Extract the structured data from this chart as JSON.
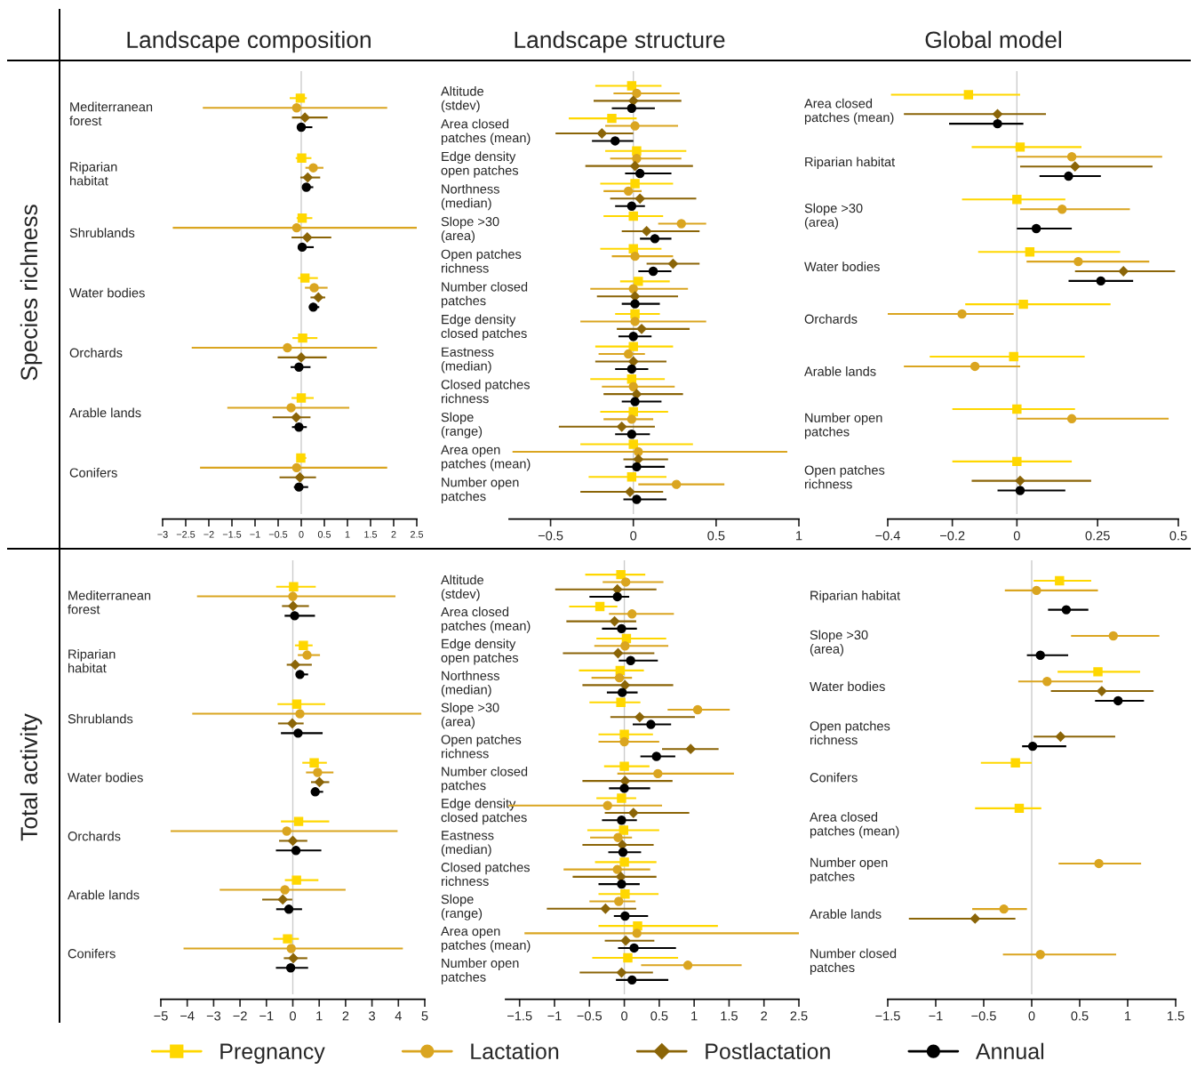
{
  "chart_data": [
    {
      "type": "scatter",
      "orientation": "horizontal",
      "title": "Landscape composition",
      "ylabel": "Species richness",
      "legend": "bottom",
      "categories": [
        "Mediterranean\nforest",
        "Riparian\nhabitat",
        "Shrublands",
        "Water bodies",
        "Orchards",
        "Arable lands",
        "Conifers"
      ],
      "series": [
        {
          "name": "Pregnancy",
          "color": "#ffd700",
          "marker": "square",
          "values": [
            -0.02,
            0.01,
            0.02,
            0.08,
            0.03,
            0.0,
            -0.01
          ],
          "errors": [
            [
              -0.25,
              0.12
            ],
            [
              -0.12,
              0.22
            ],
            [
              -0.1,
              0.24
            ],
            [
              -0.07,
              0.36
            ],
            [
              -0.19,
              0.35
            ],
            [
              -0.21,
              0.27
            ],
            [
              -0.1,
              0.11
            ]
          ]
        },
        {
          "name": "Lactation",
          "color": "#daa520",
          "marker": "circle",
          "values": [
            -0.1,
            0.26,
            -0.1,
            0.28,
            -0.3,
            -0.22,
            -0.1
          ],
          "errors": [
            [
              -2.13,
              1.86
            ],
            [
              0.09,
              0.48
            ],
            [
              -2.78,
              2.5
            ],
            [
              0.08,
              0.57
            ],
            [
              -2.37,
              1.64
            ],
            [
              -1.6,
              1.04
            ],
            [
              -2.19,
              1.86
            ]
          ]
        },
        {
          "name": "Postlactation",
          "color": "#8b6508",
          "marker": "diamond",
          "values": [
            0.08,
            0.14,
            0.13,
            0.37,
            0.0,
            -0.11,
            -0.03
          ],
          "errors": [
            [
              -0.2,
              0.57
            ],
            [
              -0.02,
              0.41
            ],
            [
              -0.21,
              0.65
            ],
            [
              0.2,
              0.52
            ],
            [
              -0.51,
              0.55
            ],
            [
              -0.62,
              0.2
            ],
            [
              -0.47,
              0.32
            ]
          ]
        },
        {
          "name": "Annual",
          "color": "#000000",
          "marker": "circle",
          "values": [
            0.0,
            0.11,
            0.02,
            0.26,
            -0.05,
            -0.05,
            -0.05
          ],
          "errors": [
            [
              -0.02,
              0.24
            ],
            [
              0.03,
              0.26
            ],
            [
              -0.07,
              0.27
            ],
            [
              0.17,
              0.39
            ],
            [
              -0.23,
              0.2
            ],
            [
              -0.2,
              0.12
            ],
            [
              -0.16,
              0.15
            ]
          ]
        }
      ],
      "xlim": [
        -3,
        2.5
      ],
      "xticks": [
        -3,
        -2.5,
        -2,
        -1.5,
        -1,
        -0.5,
        0,
        0.5,
        1,
        1.5,
        2,
        2.5
      ],
      "ref_lines": [
        {
          "axis": "x",
          "value": 0,
          "color": "#cccccc"
        }
      ]
    },
    {
      "type": "scatter",
      "orientation": "horizontal",
      "title": "Landscape structure",
      "categories": [
        "Altitude\n(stdev)",
        "Area closed\npatches (mean)",
        "Edge density\nopen patches",
        "Northness\n(median)",
        "Slope >30\n(area)",
        "Open patches\nrichness",
        "Number closed\npatches",
        "Edge density\nclosed patches",
        "Eastness\n(median)",
        "Closed patches\nrichness",
        "Slope\n(range)",
        "Area open\npatches (mean)",
        "Number open\npatches"
      ],
      "series": [
        {
          "color": "#ffd700",
          "marker": "square",
          "values": [
            -0.01,
            -0.13,
            0.02,
            0.01,
            0.0,
            0.0,
            0.03,
            0.01,
            0.0,
            -0.01,
            0.0,
            0.0,
            -0.01
          ],
          "errors": [
            [
              -0.23,
              0.17
            ],
            [
              -0.39,
              0.02
            ],
            [
              -0.17,
              0.32
            ],
            [
              -0.2,
              0.24
            ],
            [
              -0.18,
              0.18
            ],
            [
              -0.2,
              0.17
            ],
            [
              -0.08,
              0.22
            ],
            [
              -0.11,
              0.16
            ],
            [
              -0.23,
              0.24
            ],
            [
              -0.26,
              0.19
            ],
            [
              -0.2,
              0.21
            ],
            [
              -0.32,
              0.36
            ],
            [
              -0.27,
              0.2
            ]
          ]
        },
        {
          "color": "#daa520",
          "marker": "circle",
          "values": [
            0.02,
            0.01,
            0.02,
            -0.03,
            0.29,
            0.01,
            0.0,
            0.01,
            -0.03,
            0.0,
            -0.01,
            0.03,
            0.26
          ],
          "errors": [
            [
              -0.12,
              0.28
            ],
            [
              -0.17,
              0.27
            ],
            [
              -0.14,
              0.29
            ],
            [
              -0.18,
              0.05
            ],
            [
              0.15,
              0.44
            ],
            [
              -0.13,
              0.24
            ],
            [
              -0.26,
              0.33
            ],
            [
              -0.32,
              0.44
            ],
            [
              -0.21,
              0.07
            ],
            [
              -0.19,
              0.25
            ],
            [
              -0.18,
              0.12
            ],
            [
              -0.73,
              0.93
            ],
            [
              0.03,
              0.55
            ]
          ]
        },
        {
          "color": "#8b6508",
          "marker": "diamond",
          "values": [
            0.0,
            -0.19,
            0.01,
            0.04,
            0.08,
            0.24,
            0.01,
            0.05,
            0.0,
            0.02,
            -0.07,
            0.03,
            -0.02
          ],
          "errors": [
            [
              -0.24,
              0.29
            ],
            [
              -0.47,
              0.0
            ],
            [
              -0.29,
              0.36
            ],
            [
              -0.14,
              0.38
            ],
            [
              -0.07,
              0.4
            ],
            [
              0.08,
              0.4
            ],
            [
              -0.22,
              0.27
            ],
            [
              -0.1,
              0.34
            ],
            [
              -0.23,
              0.2
            ],
            [
              -0.18,
              0.3
            ],
            [
              -0.45,
              0.13
            ],
            [
              -0.06,
              0.21
            ],
            [
              -0.32,
              0.18
            ]
          ]
        },
        {
          "color": "#000000",
          "marker": "circle",
          "values": [
            -0.01,
            -0.11,
            0.04,
            -0.01,
            0.13,
            0.12,
            0.01,
            0.0,
            -0.01,
            0.01,
            -0.01,
            0.02,
            0.02
          ],
          "errors": [
            [
              -0.13,
              0.13
            ],
            [
              -0.25,
              0.0
            ],
            [
              -0.05,
              0.23
            ],
            [
              -0.11,
              0.07
            ],
            [
              0.04,
              0.23
            ],
            [
              0.03,
              0.23
            ],
            [
              -0.07,
              0.16
            ],
            [
              -0.09,
              0.11
            ],
            [
              -0.11,
              0.09
            ],
            [
              -0.07,
              0.17
            ],
            [
              -0.11,
              0.1
            ],
            [
              -0.05,
              0.19
            ],
            [
              -0.06,
              0.2
            ]
          ]
        }
      ],
      "xlim": [
        -0.75,
        1
      ],
      "xticks": [
        -0.5,
        0,
        0.5,
        1
      ],
      "ref_lines": [
        {
          "axis": "x",
          "value": 0,
          "color": "#cccccc"
        }
      ]
    },
    {
      "type": "scatter",
      "orientation": "horizontal",
      "title": "Global model",
      "categories": [
        "Area closed\npatches (mean)",
        "Riparian habitat",
        "Slope >30\n(area)",
        "Water bodies",
        "Orchards",
        "Arable lands",
        "Number open\npatches",
        "Open patches\nrichness"
      ],
      "series": [
        {
          "color": "#ffd700",
          "marker": "square",
          "values": [
            -0.15,
            0.01,
            0.0,
            0.04,
            0.02,
            -0.01,
            0.0,
            0.0
          ],
          "errors": [
            [
              -0.39,
              0.01
            ],
            [
              -0.14,
              0.2
            ],
            [
              -0.17,
              0.15
            ],
            [
              -0.12,
              0.32
            ],
            [
              -0.16,
              0.29
            ],
            [
              -0.27,
              0.21
            ],
            [
              -0.2,
              0.18
            ],
            [
              -0.2,
              0.17
            ]
          ]
        },
        {
          "color": "#daa520",
          "marker": "circle",
          "values": [
            null,
            0.17,
            0.14,
            0.19,
            -0.17,
            -0.13,
            0.17,
            null
          ],
          "errors": [
            null,
            [
              0.0,
              0.45
            ],
            [
              0.01,
              0.35
            ],
            [
              0.03,
              0.41
            ],
            [
              -0.4,
              -0.01
            ],
            [
              -0.35,
              0.01
            ],
            [
              0.0,
              0.47
            ],
            null
          ]
        },
        {
          "color": "#8b6508",
          "marker": "diamond",
          "values": [
            -0.06,
            0.18,
            null,
            0.33,
            null,
            null,
            null,
            0.01
          ],
          "errors": [
            [
              -0.35,
              0.09
            ],
            [
              0.01,
              0.42
            ],
            null,
            [
              0.18,
              0.49
            ],
            null,
            null,
            null,
            [
              -0.14,
              0.23
            ]
          ]
        },
        {
          "color": "#000000",
          "marker": "circle",
          "values": [
            -0.06,
            0.16,
            0.06,
            0.26,
            null,
            null,
            null,
            0.01
          ],
          "errors": [
            [
              -0.21,
              0.02
            ],
            [
              0.07,
              0.26
            ],
            [
              0.0,
              0.17
            ],
            [
              0.16,
              0.36
            ],
            null,
            null,
            null,
            [
              -0.06,
              0.15
            ]
          ]
        }
      ],
      "xlim": [
        -0.4,
        0.5
      ],
      "xticks": [
        -0.4,
        -0.2,
        0,
        0.25,
        0.5
      ],
      "ref_lines": [
        {
          "axis": "x",
          "value": 0,
          "color": "#cccccc"
        }
      ]
    },
    {
      "type": "scatter",
      "orientation": "horizontal",
      "ylabel": "Total activity",
      "categories": [
        "Mediterranean\nforest",
        "Riparian\nhabitat",
        "Shrublands",
        "Water bodies",
        "Orchards",
        "Arable lands",
        "Conifers"
      ],
      "series": [
        {
          "color": "#ffd700",
          "marker": "square",
          "values": [
            0.03,
            0.4,
            0.15,
            0.81,
            0.22,
            0.14,
            -0.2
          ],
          "errors": [
            [
              -0.63,
              0.87
            ],
            [
              0.08,
              0.75
            ],
            [
              -0.58,
              1.23
            ],
            [
              0.36,
              1.29
            ],
            [
              -0.45,
              1.38
            ],
            [
              -0.3,
              0.97
            ],
            [
              -0.74,
              0.23
            ]
          ]
        },
        {
          "color": "#daa520",
          "marker": "circle",
          "values": [
            0.0,
            0.54,
            0.27,
            0.94,
            -0.23,
            -0.3,
            -0.06
          ],
          "errors": [
            [
              -3.63,
              3.89
            ],
            [
              0.19,
              1.03
            ],
            [
              -3.81,
              4.87
            ],
            [
              0.5,
              1.54
            ],
            [
              -4.63,
              3.97
            ],
            [
              -2.77,
              2.0
            ],
            [
              -4.14,
              4.17
            ]
          ]
        },
        {
          "color": "#8b6508",
          "marker": "diamond",
          "values": [
            0.01,
            0.09,
            -0.02,
            1.01,
            0.0,
            -0.38,
            0.02
          ],
          "errors": [
            [
              -0.41,
              0.61
            ],
            [
              -0.23,
              0.72
            ],
            [
              -0.56,
              0.41
            ],
            [
              0.69,
              1.38
            ],
            [
              -0.52,
              0.55
            ],
            [
              -1.16,
              -0.02
            ],
            [
              -0.34,
              0.55
            ]
          ]
        },
        {
          "color": "#000000",
          "marker": "circle",
          "values": [
            0.07,
            0.27,
            0.2,
            0.85,
            0.12,
            -0.15,
            -0.08
          ],
          "errors": [
            [
              -0.31,
              0.84
            ],
            [
              0.14,
              0.58
            ],
            [
              -0.45,
              1.13
            ],
            [
              0.7,
              1.15
            ],
            [
              -0.64,
              1.08
            ],
            [
              -0.63,
              0.35
            ],
            [
              -0.64,
              0.58
            ]
          ]
        }
      ],
      "xlim": [
        -5,
        5
      ],
      "xticks": [
        -5,
        -4,
        -3,
        -2,
        -1,
        0,
        1,
        2,
        3,
        4,
        5
      ],
      "ref_lines": [
        {
          "axis": "x",
          "value": 0,
          "color": "#cccccc"
        }
      ]
    },
    {
      "type": "scatter",
      "orientation": "horizontal",
      "categories": [
        "Altitude\n(stdev)",
        "Area closed\npatches (mean)",
        "Edge density\nopen patches",
        "Northness\n(median)",
        "Slope >30\n(area)",
        "Open patches\nrichness",
        "Number closed\npatches",
        "Edge density\nclosed patches",
        "Eastness\n(median)",
        "Closed patches\nrichness",
        "Slope\n(range)",
        "Area open\npatches (mean)",
        "Number open\npatches"
      ],
      "series": [
        {
          "color": "#ffd700",
          "marker": "square",
          "values": [
            -0.05,
            -0.35,
            0.03,
            -0.06,
            -0.05,
            0.0,
            0.0,
            -0.04,
            -0.01,
            0.0,
            0.01,
            0.19,
            0.05
          ],
          "errors": [
            [
              -0.56,
              0.3
            ],
            [
              -0.79,
              -0.1
            ],
            [
              -0.4,
              0.6
            ],
            [
              -0.65,
              0.28
            ],
            [
              -0.5,
              0.23
            ],
            [
              -0.37,
              0.41
            ],
            [
              -0.29,
              0.36
            ],
            [
              -0.4,
              0.17
            ],
            [
              -0.53,
              0.5
            ],
            [
              -0.42,
              0.46
            ],
            [
              -0.37,
              0.49
            ],
            [
              -0.37,
              1.34
            ],
            [
              -0.46,
              0.77
            ]
          ]
        },
        {
          "color": "#daa520",
          "marker": "circle",
          "values": [
            0.02,
            0.11,
            0.01,
            -0.07,
            1.05,
            0.0,
            0.48,
            -0.24,
            -0.09,
            -0.1,
            -0.08,
            0.18,
            0.91
          ],
          "errors": [
            [
              -0.31,
              0.56
            ],
            [
              -0.22,
              0.71
            ],
            [
              -0.43,
              0.63
            ],
            [
              -0.47,
              0.11
            ],
            [
              0.62,
              1.51
            ],
            [
              -0.37,
              0.5
            ],
            [
              -0.1,
              1.57
            ],
            [
              -1.66,
              0.54
            ],
            [
              -0.49,
              0.11
            ],
            [
              -0.87,
              0.37
            ],
            [
              -0.5,
              0.16
            ],
            [
              -1.43,
              2.5
            ],
            [
              0.24,
              1.68
            ]
          ]
        },
        {
          "color": "#8b6508",
          "marker": "diamond",
          "values": [
            -0.1,
            -0.14,
            -0.09,
            0.01,
            0.22,
            0.95,
            0.01,
            0.13,
            -0.03,
            -0.05,
            -0.27,
            0.02,
            -0.04
          ],
          "errors": [
            [
              -0.99,
              0.46
            ],
            [
              -0.83,
              0.17
            ],
            [
              -0.88,
              0.43
            ],
            [
              -0.6,
              0.7
            ],
            [
              -0.2,
              1.01
            ],
            [
              0.54,
              1.35
            ],
            [
              -0.6,
              0.69
            ],
            [
              -0.28,
              0.93
            ],
            [
              -0.6,
              0.42
            ],
            [
              -0.74,
              0.46
            ],
            [
              -1.11,
              0.17
            ],
            [
              -0.28,
              0.43
            ],
            [
              -0.64,
              0.41
            ]
          ]
        },
        {
          "color": "#000000",
          "marker": "circle",
          "values": [
            -0.1,
            -0.04,
            0.09,
            -0.03,
            0.38,
            0.46,
            0.0,
            -0.04,
            -0.02,
            -0.04,
            0.01,
            0.14,
            0.11
          ],
          "errors": [
            [
              -0.5,
              0.07
            ],
            [
              -0.32,
              0.18
            ],
            [
              -0.08,
              0.48
            ],
            [
              -0.25,
              0.19
            ],
            [
              0.12,
              0.67
            ],
            [
              0.23,
              0.73
            ],
            [
              -0.22,
              0.37
            ],
            [
              -0.32,
              0.18
            ],
            [
              -0.23,
              0.24
            ],
            [
              -0.37,
              0.22
            ],
            [
              -0.15,
              0.34
            ],
            [
              -0.09,
              0.74
            ],
            [
              -0.12,
              0.63
            ]
          ]
        }
      ],
      "xlim": [
        -1.7,
        2.5
      ],
      "xticks": [
        -1.5,
        -1,
        -0.5,
        0,
        0.5,
        1,
        1.5,
        2,
        2.5
      ],
      "ref_lines": [
        {
          "axis": "x",
          "value": 0,
          "color": "#cccccc"
        }
      ]
    },
    {
      "type": "scatter",
      "orientation": "horizontal",
      "categories": [
        "Riparian habitat",
        "Slope >30\n(area)",
        "Water bodies",
        "Open patches\nrichness",
        "Conifers",
        "Area closed\npatches (mean)",
        "Number open\npatches",
        "Arable lands",
        "Number closed\npatches"
      ],
      "series": [
        {
          "color": "#ffd700",
          "marker": "square",
          "values": [
            0.29,
            null,
            0.69,
            null,
            -0.17,
            -0.13,
            null,
            null,
            null
          ],
          "errors": [
            [
              0.02,
              0.62
            ],
            null,
            [
              0.27,
              1.13
            ],
            null,
            [
              -0.53,
              0.0
            ],
            [
              -0.59,
              0.1
            ],
            null,
            null,
            null
          ]
        },
        {
          "color": "#daa520",
          "marker": "circle",
          "values": [
            0.05,
            0.85,
            0.16,
            null,
            null,
            null,
            0.7,
            -0.29,
            0.09
          ],
          "errors": [
            [
              -0.28,
              0.69
            ],
            [
              0.41,
              1.33
            ],
            [
              -0.14,
              0.74
            ],
            null,
            null,
            null,
            [
              0.28,
              1.14
            ],
            [
              -0.62,
              -0.05
            ],
            [
              -0.3,
              0.88
            ]
          ]
        },
        {
          "color": "#8b6508",
          "marker": "diamond",
          "values": [
            null,
            null,
            0.73,
            0.3,
            null,
            null,
            null,
            -0.59,
            null
          ],
          "errors": [
            null,
            null,
            [
              0.2,
              1.27
            ],
            [
              0.02,
              0.87
            ],
            null,
            null,
            null,
            [
              -1.28,
              -0.17
            ],
            null
          ]
        },
        {
          "color": "#000000",
          "marker": "circle",
          "values": [
            0.36,
            0.09,
            0.9,
            0.01,
            null,
            null,
            null,
            null,
            null
          ],
          "errors": [
            [
              0.17,
              0.59
            ],
            [
              -0.05,
              0.38
            ],
            [
              0.66,
              1.17
            ],
            [
              -0.1,
              0.36
            ],
            null,
            null,
            null,
            null,
            null
          ]
        }
      ],
      "xlim": [
        -1.5,
        1.5
      ],
      "xticks": [
        -1.5,
        -1,
        -0.5,
        0,
        0.5,
        1,
        1.5
      ],
      "ref_lines": [
        {
          "axis": "x",
          "value": 0,
          "color": "#cccccc"
        }
      ]
    }
  ]
}
